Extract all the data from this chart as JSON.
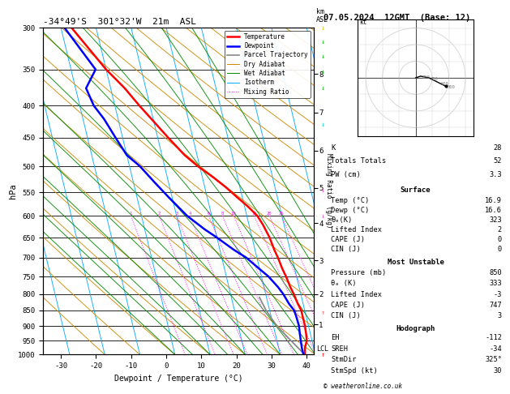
{
  "title_left": "-34°49'S  301°32'W  21m  ASL",
  "title_right": "07.05.2024  12GMT  (Base: 12)",
  "xlabel": "Dewpoint / Temperature (°C)",
  "ylabel_left": "hPa",
  "pressure_levels": [
    300,
    350,
    400,
    450,
    500,
    550,
    600,
    650,
    700,
    750,
    800,
    850,
    900,
    950,
    1000
  ],
  "xlim": [
    -35,
    42
  ],
  "skew_factor": 22.5,
  "temp_profile": {
    "pressure": [
      300,
      350,
      375,
      400,
      420,
      450,
      480,
      500,
      520,
      540,
      560,
      580,
      600,
      620,
      650,
      680,
      700,
      730,
      750,
      780,
      800,
      830,
      850,
      875,
      900,
      925,
      950,
      975,
      1000
    ],
    "temp": [
      -27,
      -20,
      -16,
      -13,
      -10.5,
      -7,
      -3.5,
      -0.5,
      3,
      6,
      8.5,
      11,
      13,
      14,
      15,
      15.5,
      16,
      16.5,
      17,
      17.5,
      18,
      18.5,
      19,
      19,
      19,
      18.8,
      18.5,
      17.5,
      17
    ]
  },
  "dewpoint_profile": {
    "pressure": [
      300,
      350,
      375,
      400,
      420,
      450,
      480,
      500,
      530,
      560,
      600,
      630,
      650,
      680,
      700,
      730,
      750,
      780,
      800,
      830,
      850,
      875,
      900,
      925,
      950,
      975,
      1000
    ],
    "temp": [
      -29,
      -23,
      -27,
      -26,
      -24,
      -22,
      -20,
      -17,
      -14,
      -11,
      -7,
      -3,
      0,
      4,
      7,
      10,
      12,
      14,
      15,
      16,
      17,
      17.2,
      17.3,
      17,
      16.8,
      16.6,
      16.6
    ]
  },
  "parcel_profile": {
    "pressure": [
      1000,
      975,
      950,
      925,
      900,
      875,
      850,
      830,
      810
    ],
    "temp": [
      17,
      15.5,
      14,
      12.5,
      11,
      10,
      9,
      8.5,
      8
    ]
  },
  "mixing_ratio_labels": [
    1,
    2,
    3,
    4,
    6,
    8,
    10,
    15,
    20,
    25
  ],
  "km_labels": [
    "1",
    "2",
    "3",
    "4",
    "5",
    "6",
    "7",
    "8"
  ],
  "km_pressures": [
    895,
    800,
    707,
    616,
    541,
    472,
    410,
    356
  ],
  "legend_items": [
    {
      "label": "Temperature",
      "color": "#ff0000",
      "lw": 1.8,
      "ls": "-"
    },
    {
      "label": "Dewpoint",
      "color": "#0000ff",
      "lw": 1.8,
      "ls": "-"
    },
    {
      "label": "Parcel Trajectory",
      "color": "#888888",
      "lw": 1.2,
      "ls": "-"
    },
    {
      "label": "Dry Adiabat",
      "color": "#cc8800",
      "lw": 0.7,
      "ls": "-"
    },
    {
      "label": "Wet Adiabat",
      "color": "#008800",
      "lw": 0.7,
      "ls": "-"
    },
    {
      "label": "Isotherm",
      "color": "#00aaff",
      "lw": 0.7,
      "ls": "-"
    },
    {
      "label": "Mixing Ratio",
      "color": "#ff00ff",
      "lw": 0.7,
      "ls": ":"
    }
  ],
  "info_box": {
    "K": 28,
    "Totals_Totals": 52,
    "PW_cm": 3.3,
    "surface": {
      "Temp_C": 16.9,
      "Dewp_C": 16.6,
      "theta_e": 323,
      "Lifted_Index": 2,
      "CAPE_J": 0,
      "CIN_J": 0
    },
    "most_unstable": {
      "Pressure_mb": 850,
      "theta_e": 333,
      "Lifted_Index": -3,
      "CAPE_J": 747,
      "CIN_J": 3
    },
    "hodograph": {
      "EH": -112,
      "SREH": -34,
      "StmDir": "325°",
      "StmSpd_kt": 30
    }
  },
  "colors": {
    "temp": "#ff0000",
    "dewpoint": "#0000ff",
    "parcel": "#888888",
    "dry_adiabat": "#cc8800",
    "wet_adiabat": "#008800",
    "isotherm": "#00aaff",
    "mixing_ratio": "#ff00ff",
    "background": "#ffffff"
  },
  "wind_barbs": [
    {
      "pressure": 300,
      "color": "#ff0000",
      "symbol": "barb_up"
    },
    {
      "pressure": 350,
      "color": "#ff4444",
      "symbol": "barb_up"
    },
    {
      "pressure": 500,
      "color": "#ff44aa",
      "symbol": "barb_down"
    },
    {
      "pressure": 550,
      "color": "#ff44aa",
      "symbol": "barb_down"
    },
    {
      "pressure": 700,
      "color": "#00cccc",
      "symbol": "barb_down"
    },
    {
      "pressure": 800,
      "color": "#00aa00",
      "symbol": "barb_down"
    },
    {
      "pressure": 850,
      "color": "#00aa00",
      "symbol": "barb_down"
    },
    {
      "pressure": 900,
      "color": "#00aa00",
      "symbol": "barb_down"
    },
    {
      "pressure": 950,
      "color": "#00aa00",
      "symbol": "barb_down"
    },
    {
      "pressure": 1000,
      "color": "#aaaa00",
      "symbol": "barb_down"
    }
  ],
  "hodo_points": [
    {
      "u": 0,
      "v": 0
    },
    {
      "u": 3,
      "v": 1
    },
    {
      "u": 8,
      "v": 0
    },
    {
      "u": 14,
      "v": -3
    },
    {
      "u": 18,
      "v": -5
    }
  ]
}
